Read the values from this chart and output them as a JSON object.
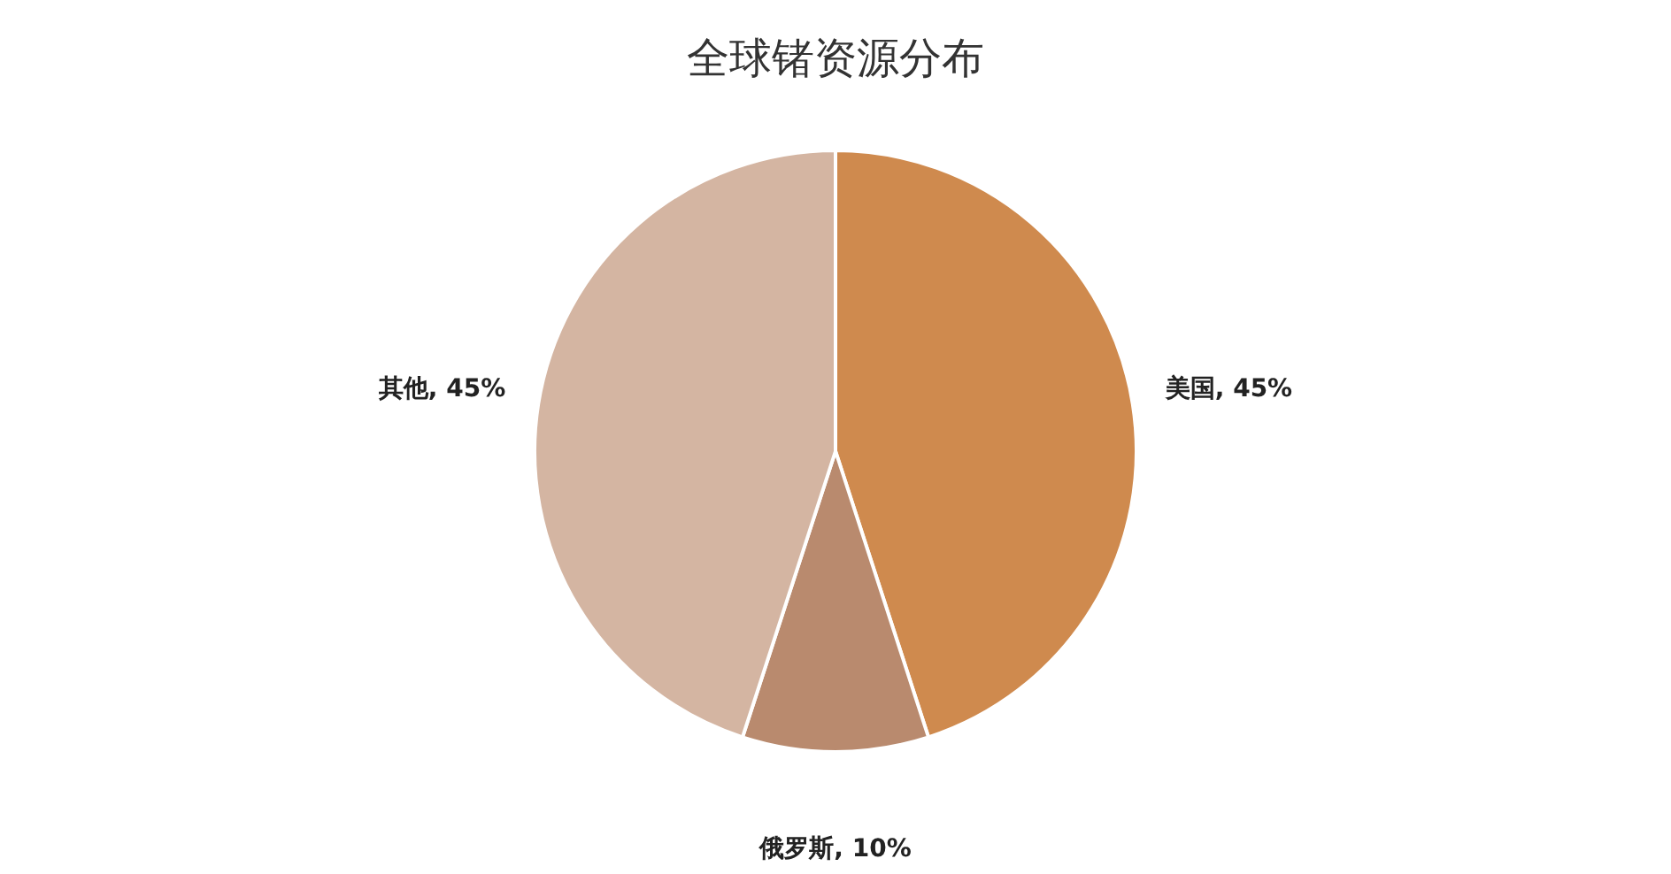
{
  "chart_data": {
    "type": "pie",
    "title": "全球锗资源分布",
    "categories": [
      "美国",
      "俄罗斯",
      "其他"
    ],
    "values": [
      45,
      10,
      45
    ],
    "value_labels": [
      "45%",
      "10%",
      "45%"
    ],
    "colors": [
      "#cf8a4e",
      "#b98a6e",
      "#d4b5a2"
    ],
    "legend": false
  }
}
